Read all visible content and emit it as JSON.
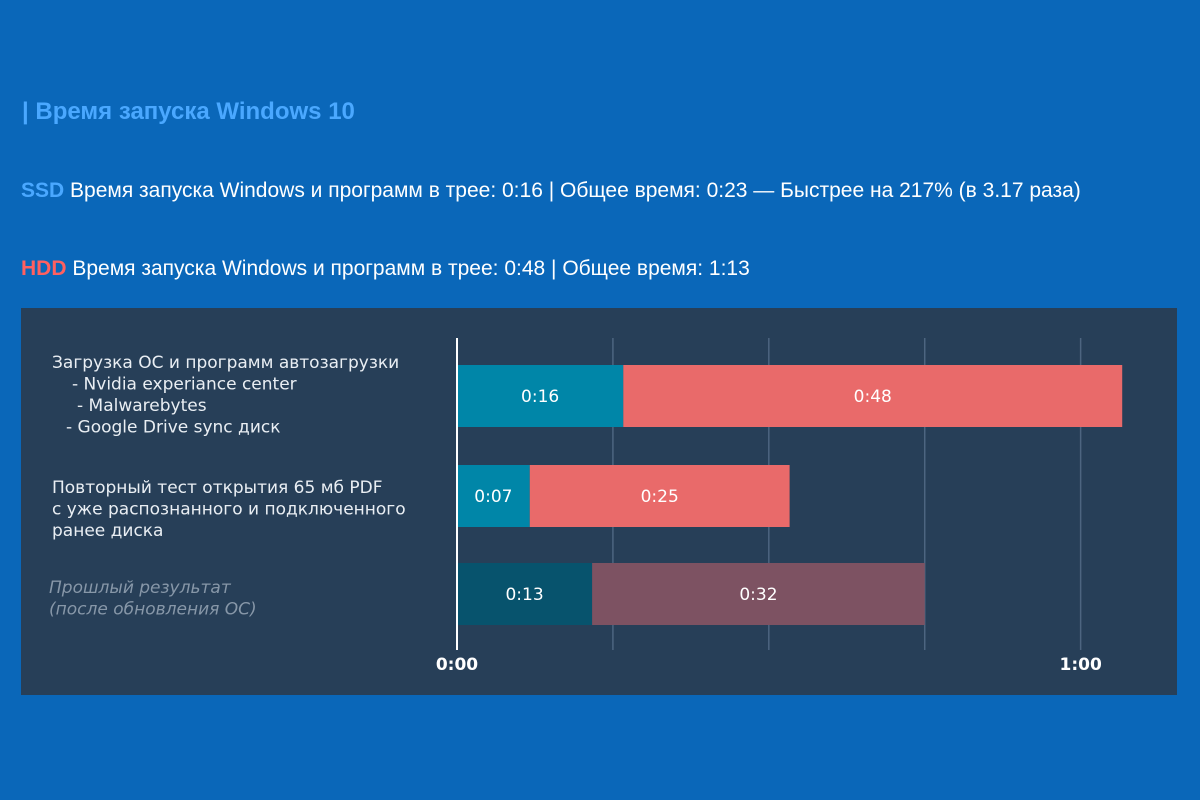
{
  "heading": "| Время запуска Windows 10",
  "paragraphs": [
    {
      "text": "Время запуска Windows и программ в трее: 0:16 | Общее время: 0:23 — Быстрее на 217% (в 3.17 раза)"
    },
    {
      "text": "Время запуска Windows и программ в трее: 0:48 | Общее время: 1:13"
    }
  ],
  "chart_data": {
    "type": "stacked-barh",
    "categories": [
      [
        "Загрузка ОС и программ автозагрузки",
        "- Nvidia experiance center",
        "- Malwarebytes",
        "- Google Drive sync диск"
      ],
      [
        "Повторный тест открытия 65 мб PDF",
        "с уже распознанного и подключенного",
        "ранее диска"
      ],
      [
        "Прошлый результат",
        "(после обновления ОС)"
      ]
    ],
    "series": [
      {
        "name": "SSD",
        "color": "#0086a8",
        "colors": [
          "#0086a8",
          "#0086a8",
          "#07536d"
        ],
        "values": [
          16,
          7,
          13
        ],
        "value_labels": [
          "0:16",
          "0:07",
          "0:13"
        ]
      },
      {
        "name": "HDD",
        "color": "#e96a6a",
        "colors": [
          "#e96a6a",
          "#e96a6a",
          "#7d5262"
        ],
        "values": [
          48,
          25,
          32
        ],
        "value_labels": [
          "0:48",
          "0:25",
          "0:32"
        ]
      }
    ],
    "xlim": [
      0,
      66
    ],
    "xticks": [
      {
        "value": 0,
        "label": "0:00"
      },
      {
        "value": 60,
        "label": "1:00"
      }
    ],
    "xgrid": [
      15,
      30,
      45,
      60
    ],
    "grid": true
  }
}
